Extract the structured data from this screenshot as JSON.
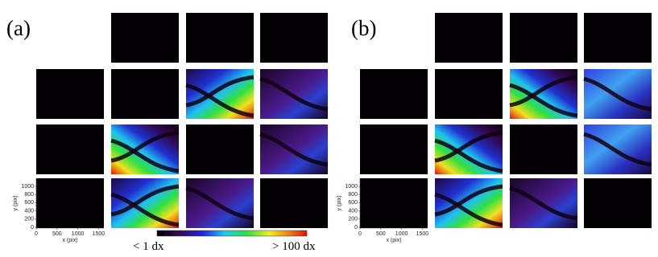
{
  "panels": [
    {
      "label": "(a)",
      "y_axis_label": "y (pix)",
      "x_axis_label": "x (pix)",
      "yticks": [
        0,
        200,
        400,
        600,
        800,
        1000
      ],
      "xticks": [
        0,
        500,
        1000,
        1500
      ]
    },
    {
      "label": "(b)",
      "y_axis_label": "y (pix)",
      "x_axis_label": "x (pix)",
      "yticks": [
        0,
        200,
        400,
        600,
        800,
        1000
      ],
      "xticks": [
        0,
        500,
        1000,
        1500
      ]
    }
  ],
  "colorbar": {
    "min_label": "< 1 dx",
    "max_label": "> 100 dx"
  }
}
